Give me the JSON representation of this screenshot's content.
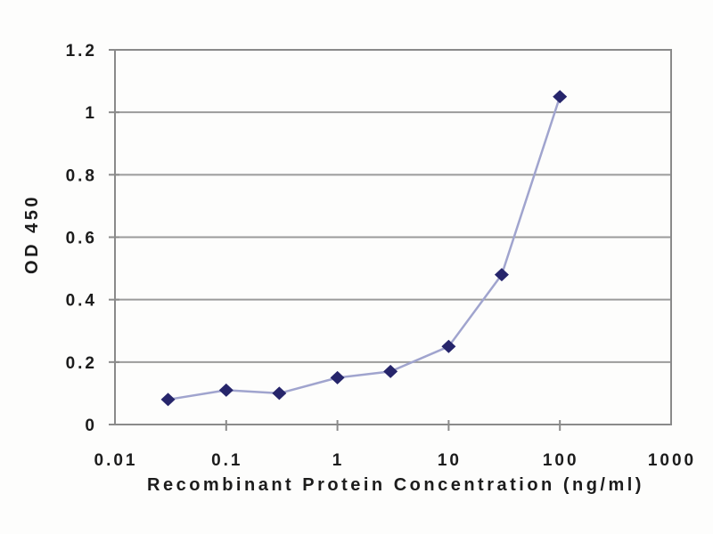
{
  "page": {
    "background": "#fdfdfc"
  },
  "chart_data": {
    "type": "line",
    "title": "",
    "xlabel": "Recombinant Protein Concentration (ng/ml)",
    "ylabel": "OD 450",
    "x_scale": "log",
    "x": [
      0.03,
      0.1,
      0.3,
      1,
      3,
      10,
      30,
      100
    ],
    "y": [
      0.08,
      0.11,
      0.1,
      0.15,
      0.17,
      0.25,
      0.48,
      1.05
    ],
    "xlim": [
      0.01,
      1000
    ],
    "ylim": [
      0,
      1.2
    ],
    "x_tick_values": [
      0.01,
      0.1,
      1,
      10,
      100,
      1000
    ],
    "x_tick_labels": [
      "0.01",
      "0.1",
      "1",
      "10",
      "100",
      "1000"
    ],
    "y_tick_values": [
      0,
      0.2,
      0.4,
      0.6,
      0.8,
      1,
      1.2
    ],
    "y_tick_labels": [
      "0",
      "0.2",
      "0.4",
      "0.6",
      "0.8",
      "1",
      "1.2"
    ],
    "grid": "horizontal",
    "legend": "none",
    "marker": "diamond",
    "colors": {
      "line": "#A0A4CE",
      "marker": "#26256B",
      "grid": "#9B9B9B",
      "border": "#8A8A8A",
      "text": "#1C1C1C",
      "background": "#fdfdfc"
    }
  }
}
